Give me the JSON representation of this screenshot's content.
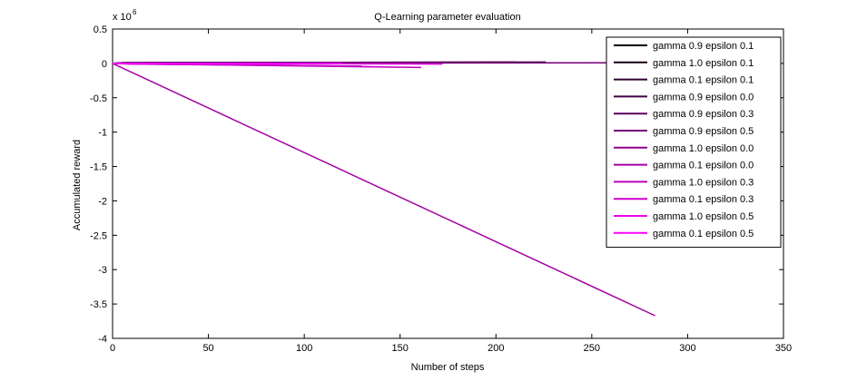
{
  "chart_data": {
    "type": "line",
    "title": "Q-Learning parameter evaluation",
    "xlabel": "Number of steps",
    "ylabel": "Accumulated reward",
    "y_multiplier_label": "x 10",
    "y_multiplier_exponent": "6",
    "xlim": [
      0,
      350
    ],
    "ylim": [
      -4,
      0.5
    ],
    "x_ticks": [
      0,
      50,
      100,
      150,
      200,
      250,
      300,
      350
    ],
    "x_tick_labels": [
      "0",
      "50",
      "100",
      "150",
      "200",
      "250",
      "300",
      "350"
    ],
    "y_ticks": [
      0.5,
      0,
      -0.5,
      -1,
      -1.5,
      -2,
      -2.5,
      -3,
      -3.5,
      -4
    ],
    "y_tick_labels": [
      "0.5",
      "0",
      "-0.5",
      "-1",
      "-1.5",
      "-2",
      "-2.5",
      "-3",
      "-3.5",
      "-4"
    ],
    "grid": false,
    "legend_position": "top-right",
    "series": [
      {
        "name": "gamma 0.9 epsilon 0.1",
        "color": "#000000",
        "x": [
          0,
          5,
          170
        ],
        "y": [
          0,
          0.0,
          0.0
        ]
      },
      {
        "name": "gamma 1.0 epsilon 0.1",
        "color": "#170017",
        "x": [
          0,
          5,
          180
        ],
        "y": [
          0,
          0.01,
          0.01
        ]
      },
      {
        "name": "gamma 0.1 epsilon 0.1",
        "color": "#2e002e",
        "x": [
          0,
          5,
          185
        ],
        "y": [
          0,
          0.01,
          0.01
        ]
      },
      {
        "name": "gamma 0.9 epsilon 0.0",
        "color": "#450045",
        "x": [
          0,
          8,
          226
        ],
        "y": [
          0,
          0.01,
          0.02
        ]
      },
      {
        "name": "gamma 0.9 epsilon 0.3",
        "color": "#5d005d",
        "x": [
          0,
          5,
          210
        ],
        "y": [
          0,
          0.01,
          0.02
        ]
      },
      {
        "name": "gamma 0.9 epsilon 0.5",
        "color": "#740074",
        "x": [
          0,
          300
        ],
        "y": [
          0,
          0.01
        ]
      },
      {
        "name": "gamma 1.0 epsilon 0.0",
        "color": "#8b008b",
        "x": [
          0,
          8,
          60,
          130
        ],
        "y": [
          0,
          0.0,
          -0.02,
          -0.04
        ]
      },
      {
        "name": "gamma 0.1 epsilon 0.0",
        "color": "#a200a2",
        "x": [
          0,
          283
        ],
        "y": [
          0,
          -3.67
        ]
      },
      {
        "name": "gamma 1.0 epsilon 0.3",
        "color": "#b900b9",
        "x": [
          0,
          10,
          80,
          161
        ],
        "y": [
          0,
          -0.01,
          -0.03,
          -0.06
        ]
      },
      {
        "name": "gamma 0.1 epsilon 0.3",
        "color": "#d100d1",
        "x": [
          0,
          10,
          100,
          140
        ],
        "y": [
          0,
          -0.01,
          -0.03,
          -0.05
        ]
      },
      {
        "name": "gamma 1.0 epsilon 0.5",
        "color": "#e800e8",
        "x": [
          0,
          5,
          172
        ],
        "y": [
          0,
          0.0,
          -0.01
        ]
      },
      {
        "name": "gamma 0.1 epsilon 0.5",
        "color": "#ff00ff",
        "x": [
          0,
          5,
          120
        ],
        "y": [
          0,
          0.0,
          0.0
        ]
      }
    ]
  }
}
